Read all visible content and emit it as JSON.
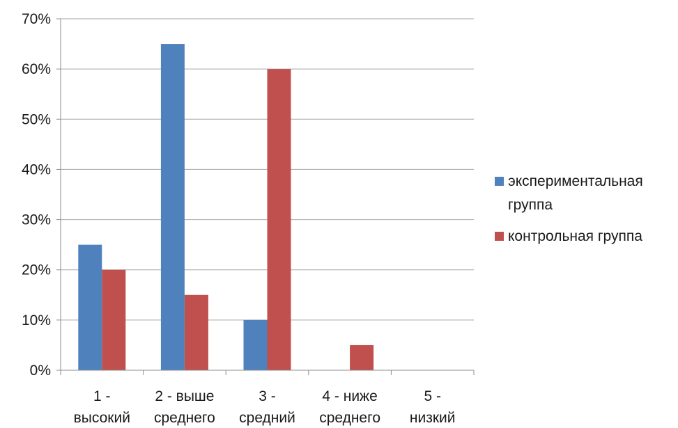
{
  "chart_data": {
    "type": "bar",
    "categories": [
      [
        "1 -",
        "высокий"
      ],
      [
        "2 - выше",
        "среднего"
      ],
      [
        "3 -",
        "средний"
      ],
      [
        "4 - ниже",
        "среднего"
      ],
      [
        "5 -",
        "низкий"
      ]
    ],
    "series": [
      {
        "name": "экспериментальная группа",
        "name_lines": [
          "экспериментальная",
          "группа"
        ],
        "color": "#4F81BD",
        "values": [
          25,
          65,
          10,
          0,
          0
        ]
      },
      {
        "name": "контрольная группа",
        "name_lines": [
          "контрольная группа"
        ],
        "color": "#C0504D",
        "values": [
          20,
          15,
          60,
          5,
          0
        ]
      }
    ],
    "ylim": [
      0,
      70
    ],
    "yticks": [
      0,
      10,
      20,
      30,
      40,
      50,
      60,
      70
    ],
    "ytick_labels": [
      "0%",
      "10%",
      "20%",
      "30%",
      "40%",
      "50%",
      "60%",
      "70%"
    ],
    "grid": true,
    "legend": "right",
    "title": "",
    "xlabel": "",
    "ylabel": ""
  }
}
